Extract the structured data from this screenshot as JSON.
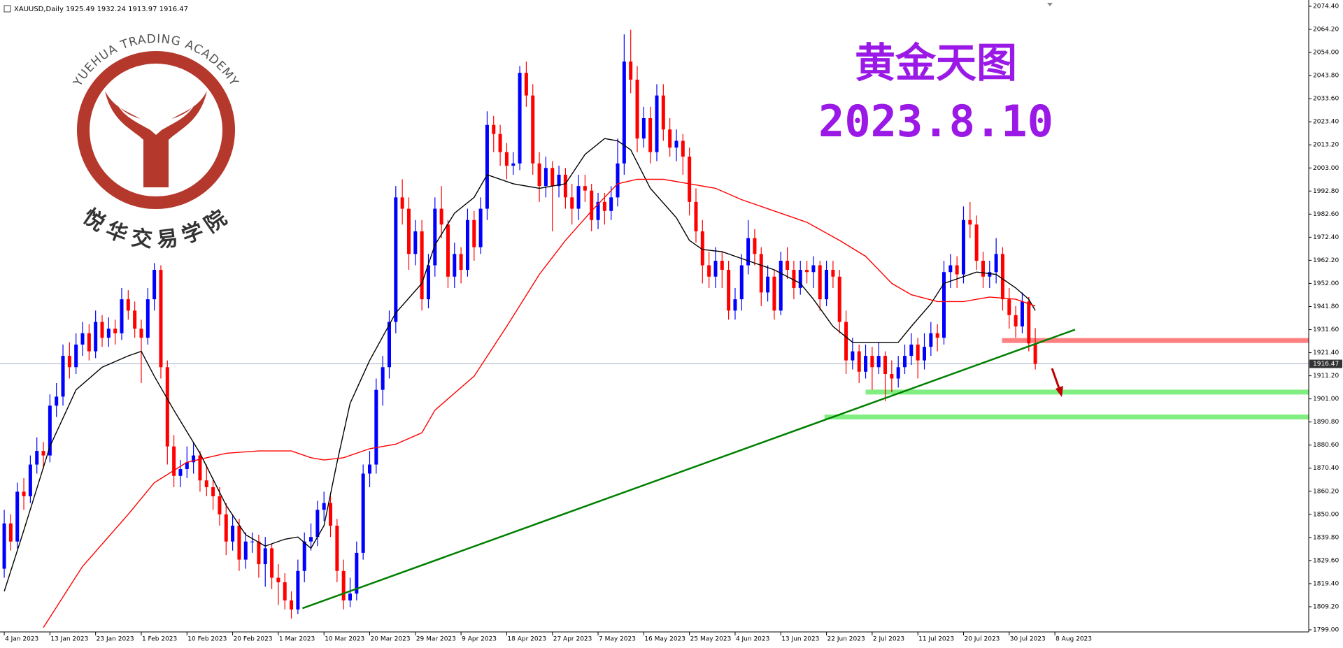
{
  "header": "XAUUSD,Daily  1925.49 1932.24 1913.97 1916.47",
  "logo": {
    "name_en": "YUEHUA TRADING ACADEMY",
    "name_cn": "悦华交易学院"
  },
  "chart_data": {
    "type": "candlestick",
    "title": "黄金天图",
    "subtitle": "2023.8.10",
    "up_color": "#0000ff",
    "down_color": "#ff0000",
    "ohlc": [
      [
        1826,
        1852,
        1822,
        1846
      ],
      [
        1846,
        1850,
        1834,
        1838
      ],
      [
        1838,
        1864,
        1835,
        1860
      ],
      [
        1860,
        1866,
        1852,
        1858
      ],
      [
        1858,
        1876,
        1855,
        1872
      ],
      [
        1872,
        1884,
        1868,
        1878
      ],
      [
        1878,
        1882,
        1870,
        1876
      ],
      [
        1876,
        1903,
        1873,
        1898
      ],
      [
        1898,
        1908,
        1893,
        1902
      ],
      [
        1902,
        1925,
        1898,
        1920
      ],
      [
        1920,
        1926,
        1910,
        1915
      ],
      [
        1915,
        1930,
        1912,
        1925
      ],
      [
        1925,
        1935,
        1920,
        1930
      ],
      [
        1930,
        1934,
        1918,
        1922
      ],
      [
        1922,
        1940,
        1919,
        1935
      ],
      [
        1935,
        1938,
        1924,
        1928
      ],
      [
        1928,
        1937,
        1924,
        1932
      ],
      [
        1932,
        1936,
        1925,
        1930
      ],
      [
        1930,
        1950,
        1927,
        1945
      ],
      [
        1945,
        1949,
        1936,
        1940
      ],
      [
        1940,
        1944,
        1928,
        1932
      ],
      [
        1932,
        1936,
        1908,
        1928
      ],
      [
        1928,
        1950,
        1925,
        1945
      ],
      [
        1945,
        1961,
        1940,
        1958
      ],
      [
        1958,
        1960,
        1910,
        1915
      ],
      [
        1915,
        1918,
        1872,
        1880
      ],
      [
        1880,
        1885,
        1862,
        1867
      ],
      [
        1867,
        1874,
        1862,
        1870
      ],
      [
        1870,
        1880,
        1866,
        1873
      ],
      [
        1873,
        1882,
        1868,
        1876
      ],
      [
        1876,
        1878,
        1860,
        1865
      ],
      [
        1865,
        1872,
        1858,
        1862
      ],
      [
        1862,
        1866,
        1852,
        1858
      ],
      [
        1858,
        1862,
        1845,
        1850
      ],
      [
        1850,
        1855,
        1832,
        1838
      ],
      [
        1838,
        1850,
        1834,
        1845
      ],
      [
        1845,
        1848,
        1825,
        1830
      ],
      [
        1830,
        1842,
        1826,
        1838
      ],
      [
        1838,
        1842,
        1833,
        1838
      ],
      [
        1838,
        1841,
        1822,
        1828
      ],
      [
        1828,
        1840,
        1818,
        1835
      ],
      [
        1835,
        1837,
        1817,
        1822
      ],
      [
        1822,
        1828,
        1810,
        1820
      ],
      [
        1820,
        1824,
        1808,
        1812
      ],
      [
        1812,
        1816,
        1804,
        1808
      ],
      [
        1808,
        1830,
        1806,
        1825
      ],
      [
        1825,
        1842,
        1820,
        1838
      ],
      [
        1838,
        1846,
        1834,
        1840
      ],
      [
        1840,
        1856,
        1836,
        1852
      ],
      [
        1852,
        1860,
        1847,
        1855
      ],
      [
        1855,
        1858,
        1840,
        1845
      ],
      [
        1845,
        1848,
        1820,
        1825
      ],
      [
        1825,
        1830,
        1808,
        1812
      ],
      [
        1812,
        1822,
        1809,
        1815
      ],
      [
        1815,
        1838,
        1812,
        1833
      ],
      [
        1833,
        1872,
        1830,
        1868
      ],
      [
        1868,
        1878,
        1862,
        1872
      ],
      [
        1872,
        1910,
        1868,
        1905
      ],
      [
        1905,
        1920,
        1898,
        1915
      ],
      [
        1915,
        1940,
        1910,
        1935
      ],
      [
        1935,
        1995,
        1930,
        1990
      ],
      [
        1990,
        1998,
        1978,
        1985
      ],
      [
        1985,
        1990,
        1958,
        1965
      ],
      [
        1965,
        1980,
        1960,
        1975
      ],
      [
        1975,
        1980,
        1940,
        1945
      ],
      [
        1945,
        1965,
        1941,
        1960
      ],
      [
        1960,
        1990,
        1955,
        1985
      ],
      [
        1985,
        1995,
        1972,
        1978
      ],
      [
        1978,
        1980,
        1950,
        1955
      ],
      [
        1955,
        1970,
        1950,
        1965
      ],
      [
        1965,
        1968,
        1952,
        1958
      ],
      [
        1958,
        1985,
        1955,
        1980
      ],
      [
        1980,
        1984,
        1962,
        1968
      ],
      [
        1968,
        1990,
        1965,
        1985
      ],
      [
        1985,
        2028,
        1980,
        2022
      ],
      [
        2022,
        2026,
        2010,
        2018
      ],
      [
        2018,
        2022,
        2004,
        2010
      ],
      [
        2010,
        2014,
        1998,
        2004
      ],
      [
        2004,
        2010,
        2000,
        2005
      ],
      [
        2005,
        2048,
        2002,
        2045
      ],
      [
        2045,
        2050,
        2030,
        2035
      ],
      [
        2035,
        2040,
        2000,
        2005
      ],
      [
        2005,
        2010,
        1988,
        1995
      ],
      [
        1995,
        2008,
        1990,
        2003
      ],
      [
        2003,
        2006,
        1975,
        1995
      ],
      [
        1995,
        2004,
        1990,
        2000
      ],
      [
        2000,
        2003,
        1985,
        1990
      ],
      [
        1990,
        1996,
        1978,
        1985
      ],
      [
        1985,
        2000,
        1980,
        1995
      ],
      [
        1995,
        2000,
        1988,
        1993
      ],
      [
        1993,
        1996,
        1975,
        1980
      ],
      [
        1980,
        1992,
        1976,
        1988
      ],
      [
        1988,
        1992,
        1978,
        1984
      ],
      [
        1984,
        1995,
        1980,
        1990
      ],
      [
        1990,
        2016,
        1986,
        2005
      ],
      [
        2005,
        2062,
        2000,
        2050
      ],
      [
        2050,
        2064,
        2036,
        2042
      ],
      [
        2042,
        2048,
        2010,
        2016
      ],
      [
        2016,
        2030,
        2012,
        2025
      ],
      [
        2025,
        2030,
        2005,
        2010
      ],
      [
        2010,
        2040,
        2006,
        2035
      ],
      [
        2035,
        2040,
        2015,
        2020
      ],
      [
        2020,
        2025,
        2008,
        2012
      ],
      [
        2012,
        2020,
        2006,
        2015
      ],
      [
        2015,
        2018,
        2000,
        2008
      ],
      [
        2008,
        2012,
        1982,
        1988
      ],
      [
        1988,
        1994,
        1970,
        1975
      ],
      [
        1975,
        1980,
        1952,
        1960
      ],
      [
        1960,
        1966,
        1950,
        1955
      ],
      [
        1955,
        1968,
        1950,
        1962
      ],
      [
        1962,
        1966,
        1950,
        1958
      ],
      [
        1958,
        1962,
        1936,
        1940
      ],
      [
        1940,
        1950,
        1936,
        1945
      ],
      [
        1945,
        1965,
        1940,
        1960
      ],
      [
        1960,
        1980,
        1956,
        1972
      ],
      [
        1972,
        1976,
        1960,
        1965
      ],
      [
        1965,
        1968,
        1942,
        1948
      ],
      [
        1948,
        1960,
        1944,
        1955
      ],
      [
        1955,
        1958,
        1936,
        1940
      ],
      [
        1940,
        1966,
        1938,
        1962
      ],
      [
        1962,
        1968,
        1954,
        1958
      ],
      [
        1958,
        1962,
        1945,
        1950
      ],
      [
        1950,
        1962,
        1947,
        1958
      ],
      [
        1958,
        1962,
        1952,
        1957
      ],
      [
        1957,
        1964,
        1950,
        1960
      ],
      [
        1960,
        1962,
        1940,
        1945
      ],
      [
        1945,
        1962,
        1942,
        1958
      ],
      [
        1958,
        1962,
        1950,
        1955
      ],
      [
        1955,
        1958,
        1930,
        1935
      ],
      [
        1935,
        1940,
        1912,
        1918
      ],
      [
        1918,
        1928,
        1914,
        1922
      ],
      [
        1922,
        1925,
        1908,
        1913
      ],
      [
        1913,
        1925,
        1910,
        1920
      ],
      [
        1920,
        1924,
        1905,
        1915
      ],
      [
        1915,
        1926,
        1912,
        1920
      ],
      [
        1920,
        1922,
        1900,
        1912
      ],
      [
        1912,
        1918,
        1904,
        1910
      ],
      [
        1910,
        1920,
        1906,
        1915
      ],
      [
        1915,
        1925,
        1912,
        1920
      ],
      [
        1920,
        1930,
        1916,
        1925
      ],
      [
        1925,
        1928,
        1910,
        1918
      ],
      [
        1918,
        1930,
        1914,
        1924
      ],
      [
        1924,
        1935,
        1920,
        1930
      ],
      [
        1930,
        1934,
        1922,
        1928
      ],
      [
        1928,
        1962,
        1925,
        1957
      ],
      [
        1957,
        1965,
        1950,
        1960
      ],
      [
        1960,
        1964,
        1950,
        1956
      ],
      [
        1956,
        1986,
        1952,
        1980
      ],
      [
        1980,
        1988,
        1972,
        1978
      ],
      [
        1978,
        1982,
        1958,
        1962
      ],
      [
        1962,
        1966,
        1950,
        1955
      ],
      [
        1955,
        1962,
        1950,
        1957
      ],
      [
        1957,
        1972,
        1952,
        1965
      ],
      [
        1965,
        1968,
        1940,
        1945
      ],
      [
        1945,
        1950,
        1932,
        1938
      ],
      [
        1938,
        1942,
        1928,
        1933
      ],
      [
        1933,
        1948,
        1930,
        1944
      ],
      [
        1944,
        1946,
        1922,
        1925.49
      ],
      [
        1925.49,
        1932.24,
        1913.97,
        1916.47
      ]
    ],
    "indicators": [
      {
        "color": "#000000",
        "x": [
          0,
          3,
          7,
          11,
          15,
          19,
          21,
          23,
          26,
          30,
          34,
          37,
          40,
          43,
          45,
          47,
          49,
          51,
          53,
          56,
          60,
          64,
          66,
          69,
          72,
          74,
          78,
          82,
          86,
          89,
          92,
          94,
          96,
          99,
          103,
          105,
          107,
          110,
          114,
          118,
          122,
          124,
          127,
          130,
          134,
          137,
          139,
          142,
          144,
          147,
          149,
          152,
          155,
          157,
          158
        ],
        "values": [
          1816,
          1843,
          1880,
          1905,
          1915,
          1920,
          1922,
          1911,
          1896,
          1877,
          1854,
          1841,
          1836,
          1839,
          1840,
          1835,
          1845,
          1873,
          1899,
          1918,
          1939,
          1952,
          1969,
          1983,
          1990,
          2000,
          1996,
          1994,
          1996,
          2009,
          2016,
          2015,
          2011,
          1994,
          1981,
          1971,
          1967,
          1966,
          1962,
          1958,
          1952,
          1945,
          1933,
          1926,
          1926,
          1926,
          1933,
          1943,
          1952,
          1955,
          1957,
          1956,
          1950,
          1945,
          1940
        ]
      },
      {
        "color": "#ff0000",
        "x": [
          6,
          12,
          19,
          23,
          28,
          34,
          39,
          44,
          47,
          49,
          52,
          56,
          60,
          64,
          66,
          72,
          77,
          82,
          86,
          90,
          94,
          97,
          101,
          105,
          109,
          113,
          118,
          123,
          128,
          132,
          136,
          139,
          143,
          147,
          151,
          155,
          158
        ],
        "values": [
          1800,
          1827,
          1850,
          1864,
          1873,
          1877,
          1878,
          1878,
          1875,
          1874,
          1875,
          1879,
          1881,
          1886,
          1896,
          1911,
          1933,
          1956,
          1971,
          1984,
          1996,
          1998,
          1998,
          1996,
          1994,
          1989,
          1984,
          1979,
          1971,
          1964,
          1952,
          1947,
          1944,
          1944,
          1946,
          1945,
          1942
        ]
      }
    ],
    "trendline": {
      "x": [
        45.7,
        164.1
      ],
      "y": [
        1808.5,
        1931.6
      ],
      "color": "#008000"
    },
    "zones": [
      {
        "x0": 152.9,
        "y": 1926.8,
        "color": "#ff8080"
      },
      {
        "x0": 132,
        "y": 1904,
        "color": "#80ee80"
      },
      {
        "x0": 125.7,
        "y": 1893,
        "color": "#80ee80"
      }
    ],
    "last_price": 1916.47,
    "xlim": [
      -0.65,
      199.9
    ],
    "ylim": [
      1799,
      2074.4
    ],
    "xticks": [
      {
        "value": 0,
        "label": "4 Jan 2023"
      },
      {
        "value": 7,
        "label": "13 Jan 2023"
      },
      {
        "value": 14,
        "label": "23 Jan 2023"
      },
      {
        "value": 21,
        "label": "1 Feb 2023"
      },
      {
        "value": 28,
        "label": "10 Feb 2023"
      },
      {
        "value": 35,
        "label": "20 Feb 2023"
      },
      {
        "value": 42,
        "label": "1 Mar 2023"
      },
      {
        "value": 49,
        "label": "10 Mar 2023"
      },
      {
        "value": 56,
        "label": "20 Mar 2023"
      },
      {
        "value": 63,
        "label": "29 Mar 2023"
      },
      {
        "value": 70,
        "label": "9 Apr 2023"
      },
      {
        "value": 77,
        "label": "18 Apr 2023"
      },
      {
        "value": 84,
        "label": "27 Apr 2023"
      },
      {
        "value": 91,
        "label": "7 May 2023"
      },
      {
        "value": 98,
        "label": "16 May 2023"
      },
      {
        "value": 105,
        "label": "25 May 2023"
      },
      {
        "value": 112,
        "label": "4 Jun 2023"
      },
      {
        "value": 119,
        "label": "13 Jun 2023"
      },
      {
        "value": 126,
        "label": "22 Jun 2023"
      },
      {
        "value": 133,
        "label": "2 Jul 2023"
      },
      {
        "value": 140,
        "label": "11 Jul 2023"
      },
      {
        "value": 147,
        "label": "20 Jul 2023"
      },
      {
        "value": 154,
        "label": "30 Jul 2023"
      },
      {
        "value": 161,
        "label": "8 Aug 2023"
      }
    ],
    "yticks": [
      {
        "value": 1799,
        "label": "1799.00"
      },
      {
        "value": 1809.2,
        "label": "1809.20"
      },
      {
        "value": 1819.4,
        "label": "1819.40"
      },
      {
        "value": 1829.6,
        "label": "1829.60"
      },
      {
        "value": 1839.8,
        "label": "1839.80"
      },
      {
        "value": 1850,
        "label": "1850.00"
      },
      {
        "value": 1860.2,
        "label": "1860.20"
      },
      {
        "value": 1870.4,
        "label": "1870.40"
      },
      {
        "value": 1880.6,
        "label": "1880.60"
      },
      {
        "value": 1890.8,
        "label": "1890.80"
      },
      {
        "value": 1901,
        "label": "1901.00"
      },
      {
        "value": 1911.2,
        "label": "1911.20"
      },
      {
        "value": 1921.4,
        "label": "1921.40"
      },
      {
        "value": 1931.6,
        "label": "1931.60"
      },
      {
        "value": 1941.8,
        "label": "1941.80"
      },
      {
        "value": 1952,
        "label": "1952.00"
      },
      {
        "value": 1962.2,
        "label": "1962.20"
      },
      {
        "value": 1972.4,
        "label": "1972.40"
      },
      {
        "value": 1982.6,
        "label": "1982.60"
      },
      {
        "value": 1992.8,
        "label": "1992.80"
      },
      {
        "value": 2003,
        "label": "2003.00"
      },
      {
        "value": 2013.2,
        "label": "2013.20"
      },
      {
        "value": 2023.4,
        "label": "2023.40"
      },
      {
        "value": 2033.6,
        "label": "2033.60"
      },
      {
        "value": 2043.8,
        "label": "2043.80"
      },
      {
        "value": 2054,
        "label": "2054.00"
      },
      {
        "value": 2064.2,
        "label": "2064.20"
      },
      {
        "value": 2074.4,
        "label": "2074.40"
      }
    ]
  }
}
